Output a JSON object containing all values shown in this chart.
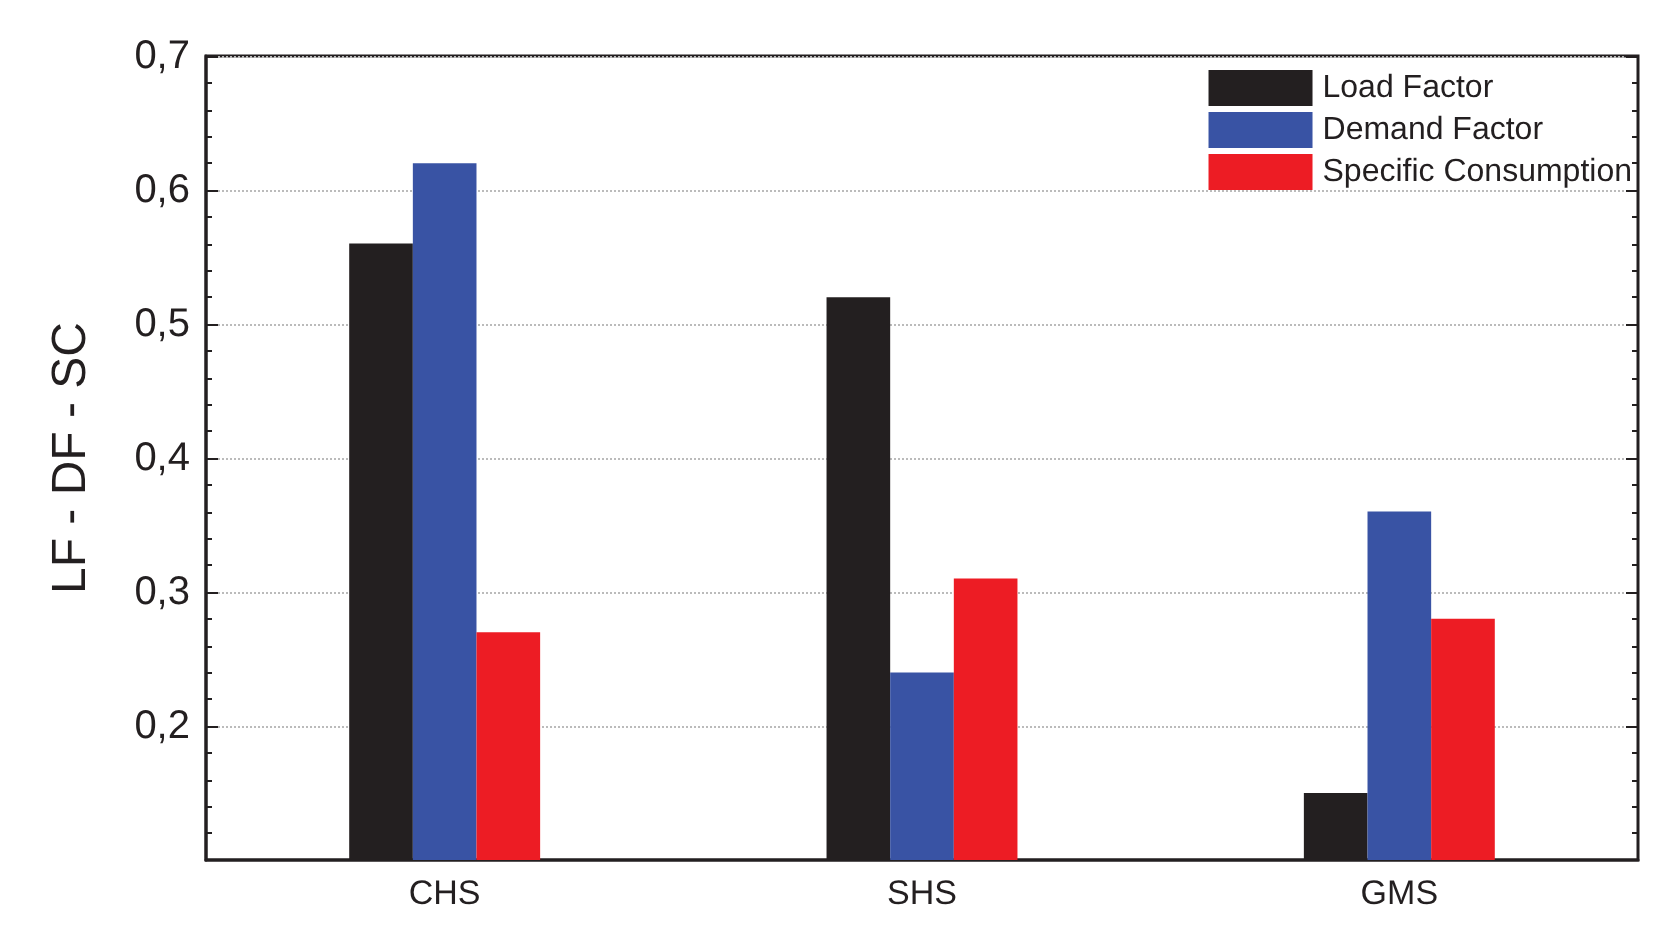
{
  "chart_data": {
    "type": "bar",
    "ylabel": "LF - DF - SC",
    "categories": [
      "CHS",
      "SHS",
      "GMS"
    ],
    "series": [
      {
        "name": "Load Factor",
        "color": "#231f20",
        "values": [
          0.56,
          0.52,
          0.15
        ]
      },
      {
        "name": "Demand Factor",
        "color": "#3953a4",
        "values": [
          0.62,
          0.24,
          0.36
        ]
      },
      {
        "name": "Specific Consumption",
        "color": "#ed1c24",
        "values": [
          0.27,
          0.31,
          0.28
        ]
      }
    ],
    "ylim": [
      0.1,
      0.7
    ],
    "yticks": [
      {
        "value": 0.2,
        "label": "0,2"
      },
      {
        "value": 0.3,
        "label": "0,3"
      },
      {
        "value": 0.4,
        "label": "0,4"
      },
      {
        "value": 0.5,
        "label": "0,5"
      },
      {
        "value": 0.6,
        "label": "0,6"
      },
      {
        "value": 0.7,
        "label": "0,7"
      }
    ],
    "grid": "y",
    "legend": "top right"
  }
}
